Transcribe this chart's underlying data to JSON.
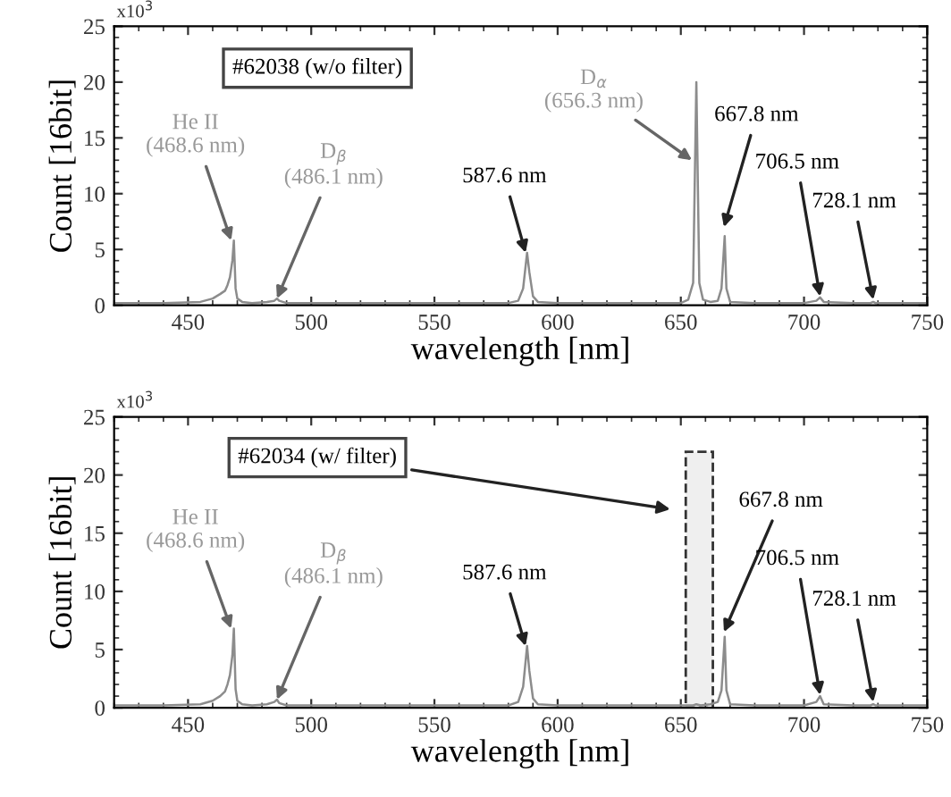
{
  "chart_data": [
    {
      "type": "line",
      "xlabel": "wavelength [nm]",
      "ylabel": "Count [16bit]",
      "xlim": [
        420,
        750
      ],
      "xticks": [
        450,
        500,
        550,
        600,
        650,
        700,
        750
      ],
      "ylim": [
        0,
        25
      ],
      "yticks": [
        0,
        5,
        10,
        15,
        20,
        25
      ],
      "grid": false,
      "legend": false,
      "marker": "none",
      "line_style": "solid",
      "series": [
        {
          "color": "#8c8c8c",
          "x": [
            420,
            440,
            455,
            460,
            463,
            465,
            466,
            467,
            468,
            468.6,
            469.3,
            470,
            472,
            476,
            482,
            485,
            486.1,
            487,
            490,
            500,
            550,
            580,
            584,
            586,
            587.6,
            588.5,
            590,
            592,
            600,
            640,
            650,
            653,
            655,
            656.3,
            657.5,
            659,
            662,
            665,
            666.5,
            667.8,
            668.5,
            670,
            680,
            700,
            705,
            706.5,
            708,
            720,
            727,
            728.1,
            729,
            750
          ],
          "values": [
            0.2,
            0.2,
            0.3,
            0.6,
            1.0,
            1.3,
            1.8,
            2.5,
            4,
            5.8,
            1.5,
            0.6,
            0.3,
            0.2,
            0.3,
            0.4,
            0.6,
            0.4,
            0.2,
            0.2,
            0.2,
            0.2,
            0.4,
            1.5,
            4.7,
            3,
            0.8,
            0.3,
            0.2,
            0.2,
            0.2,
            0.5,
            2,
            20,
            2,
            0.5,
            0.3,
            0.4,
            1.5,
            6.2,
            1.5,
            0.3,
            0.2,
            0.2,
            0.4,
            0.7,
            0.3,
            0.2,
            0.2,
            0.3,
            0.2,
            0.2
          ]
        }
      ],
      "annotations": [
        "#62038 (w/o filter)",
        "x10$^{3}$",
        {
          "text": "He II\n(468.6 nm)",
          "x": 467.5,
          "y": 5.8
        },
        {
          "text": "D$_{β}$\n(486.1 nm)",
          "x": 486.1,
          "y": 0.6
        },
        {
          "text": "587.6 nm",
          "x": 587,
          "y": 4.7
        },
        {
          "text": "D$_{α}$\n(656.3 nm)",
          "x": 654.5,
          "y": 13
        },
        {
          "text": "667.8 nm",
          "x": 667.5,
          "y": 7
        },
        {
          "text": "706.5 nm",
          "x": 706.5,
          "y": 0.8
        },
        {
          "text": "728.1 nm",
          "x": 728.1,
          "y": 0.5
        }
      ]
    },
    {
      "type": "line",
      "xlabel": "wavelength [nm]",
      "ylabel": "Count [16bit]",
      "xlim": [
        420,
        750
      ],
      "xticks": [
        450,
        500,
        550,
        600,
        650,
        700,
        750
      ],
      "ylim": [
        0,
        25
      ],
      "yticks": [
        0,
        5,
        10,
        15,
        20,
        25
      ],
      "grid": false,
      "legend": false,
      "marker": "none",
      "line_style": "solid",
      "series": [
        {
          "color": "#8c8c8c",
          "x": [
            420,
            440,
            455,
            460,
            463,
            465,
            466,
            467,
            468,
            468.6,
            469.3,
            470,
            472,
            476,
            482,
            485,
            486.1,
            487,
            490,
            500,
            550,
            580,
            584,
            586,
            587.6,
            588.5,
            590,
            592,
            600,
            640,
            650,
            655,
            656.3,
            658,
            662,
            665,
            666.5,
            667.8,
            668.5,
            670,
            680,
            700,
            705,
            706.5,
            708,
            720,
            727,
            728.1,
            729,
            750
          ],
          "values": [
            0.2,
            0.2,
            0.3,
            0.6,
            1.0,
            1.4,
            2.0,
            2.8,
            4.5,
            6.8,
            1.6,
            0.6,
            0.3,
            0.2,
            0.3,
            0.5,
            0.7,
            0.4,
            0.2,
            0.2,
            0.2,
            0.2,
            0.5,
            1.8,
            5.3,
            3.2,
            0.8,
            0.3,
            0.2,
            0.2,
            0.2,
            0.2,
            0.3,
            0.2,
            0.3,
            0.5,
            1.5,
            6.1,
            1.5,
            0.3,
            0.2,
            0.2,
            0.5,
            1.0,
            0.3,
            0.2,
            0.2,
            0.3,
            0.2,
            0.2
          ]
        }
      ],
      "bands": [
        {
          "axis": "x",
          "from": 652,
          "to": 663,
          "color": "#333333"
        }
      ],
      "annotations": [
        "#62034 (w/ filter)",
        "x10$^{3}$",
        {
          "text": "He II\n(468.6 nm)",
          "x": 467.5,
          "y": 6.8
        },
        {
          "text": "D$_{β}$\n(486.1 nm)",
          "x": 486.1,
          "y": 0.7
        },
        {
          "text": "587.6 nm",
          "x": 587,
          "y": 5.3
        },
        {
          "text": "667.8 nm",
          "x": 667.5,
          "y": 6.5
        },
        {
          "text": "706.5 nm",
          "x": 706.5,
          "y": 1.1
        },
        {
          "text": "728.1 nm",
          "x": 728.1,
          "y": 0.5
        }
      ]
    }
  ]
}
